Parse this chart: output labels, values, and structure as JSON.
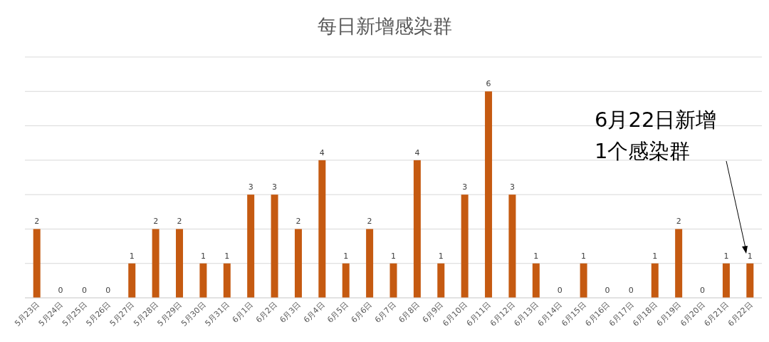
{
  "chart_data": {
    "type": "bar",
    "title": "每日新增感染群",
    "categories": [
      "5月23日",
      "5月24日",
      "5月25日",
      "5月26日",
      "5月27日",
      "5月28日",
      "5月29日",
      "5月30日",
      "5月31日",
      "6月1日",
      "6月2日",
      "6月3日",
      "6月4日",
      "6月5日",
      "6月6日",
      "6月7日",
      "6月8日",
      "6月9日",
      "6月10日",
      "6月11日",
      "6月12日",
      "6月13日",
      "6月14日",
      "6月15日",
      "6月16日",
      "6月17日",
      "6月18日",
      "6月19日",
      "6月20日",
      "6月21日",
      "6月22日"
    ],
    "values": [
      2,
      0,
      0,
      0,
      1,
      2,
      2,
      1,
      1,
      3,
      3,
      2,
      4,
      1,
      2,
      1,
      4,
      1,
      3,
      6,
      3,
      1,
      0,
      1,
      0,
      0,
      1,
      2,
      0,
      1,
      1
    ],
    "color": "#c55a11",
    "ylim": [
      0,
      7
    ],
    "yticks": [
      {
        "value": 0,
        "label": null
      },
      {
        "value": 1,
        "label": null
      },
      {
        "value": 2,
        "label": null
      },
      {
        "value": 3,
        "label": null
      },
      {
        "value": 4,
        "label": null
      },
      {
        "value": 5,
        "label": null
      },
      {
        "value": 6,
        "label": null
      },
      {
        "value": 7,
        "label": null
      }
    ],
    "tick_labels": "x",
    "grid": "y",
    "data_labels": true,
    "annotations": [
      "6月22日新增\n1个感染群"
    ]
  }
}
